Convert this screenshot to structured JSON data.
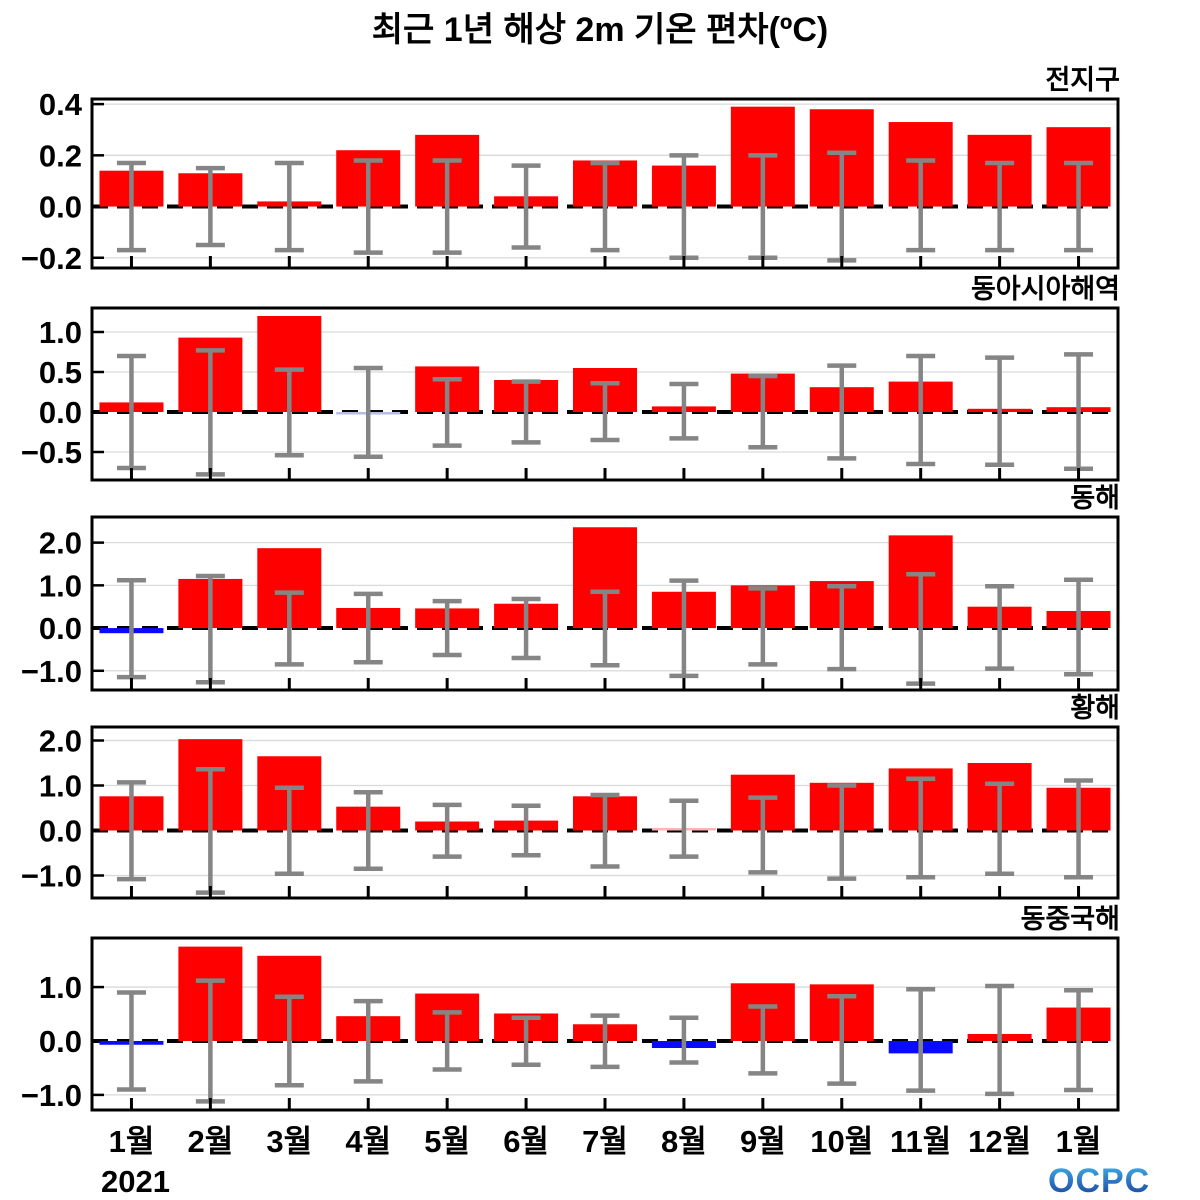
{
  "title": "최근 1년 해상 2m 기온 편차(ºC)",
  "logo_text": "OCPC",
  "x_axis": {
    "months": [
      "1월",
      "2월",
      "3월",
      "4월",
      "5월",
      "6월",
      "7월",
      "8월",
      "9월",
      "10월",
      "11월",
      "12월",
      "1월"
    ],
    "year_label": "2021"
  },
  "colors": {
    "positive_bar": "#ff0000",
    "negative_bar": "#0a0afc",
    "error_bar": "#858585",
    "gridline": "#d9d9d9",
    "zero_line": "#000000",
    "frame": "#000000"
  },
  "chart_data": [
    {
      "type": "bar",
      "region": "전지구",
      "categories": [
        "1월",
        "2월",
        "3월",
        "4월",
        "5월",
        "6월",
        "7월",
        "8월",
        "9월",
        "10월",
        "11월",
        "12월",
        "1월"
      ],
      "values": [
        0.14,
        0.13,
        0.02,
        0.22,
        0.28,
        0.04,
        0.18,
        0.16,
        0.39,
        0.38,
        0.33,
        0.28,
        0.31
      ],
      "spread_top": [
        0.17,
        0.15,
        0.17,
        0.18,
        0.18,
        0.16,
        0.17,
        0.2,
        0.2,
        0.21,
        0.18,
        0.17,
        0.17
      ],
      "spread_bottom": [
        -0.17,
        -0.15,
        -0.17,
        -0.18,
        -0.18,
        -0.16,
        -0.17,
        -0.2,
        -0.2,
        -0.21,
        -0.17,
        -0.17,
        -0.17
      ],
      "yticks": [
        0.4,
        0.2,
        0.0,
        -0.2
      ],
      "ylim": [
        -0.24,
        0.42
      ],
      "bar_color_overrides": {}
    },
    {
      "type": "bar",
      "region": "동아시아해역",
      "categories": [
        "1월",
        "2월",
        "3월",
        "4월",
        "5월",
        "6월",
        "7월",
        "8월",
        "9월",
        "10월",
        "11월",
        "12월",
        "1월"
      ],
      "values": [
        0.12,
        0.93,
        1.2,
        -0.02,
        0.57,
        0.4,
        0.55,
        0.07,
        0.48,
        0.31,
        0.38,
        0.04,
        0.06
      ],
      "spread_top": [
        0.7,
        0.77,
        0.53,
        0.55,
        0.41,
        0.38,
        0.36,
        0.35,
        0.45,
        0.58,
        0.7,
        0.68,
        0.72
      ],
      "spread_bottom": [
        -0.7,
        -0.78,
        -0.54,
        -0.56,
        -0.42,
        -0.38,
        -0.35,
        -0.33,
        -0.44,
        -0.58,
        -0.65,
        -0.66,
        -0.71
      ],
      "yticks": [
        1.0,
        0.5,
        0.0,
        -0.5
      ],
      "ylim": [
        -0.85,
        1.3
      ],
      "bar_color_overrides": {
        "3": "#b7bce4"
      }
    },
    {
      "type": "bar",
      "region": "동해",
      "categories": [
        "1월",
        "2월",
        "3월",
        "4월",
        "5월",
        "6월",
        "7월",
        "8월",
        "9월",
        "10월",
        "11월",
        "12월",
        "1월"
      ],
      "values": [
        -0.12,
        1.15,
        1.87,
        0.47,
        0.46,
        0.57,
        2.36,
        0.85,
        1.0,
        1.1,
        2.17,
        0.5,
        0.4
      ],
      "spread_top": [
        1.12,
        1.22,
        0.83,
        0.8,
        0.63,
        0.68,
        0.85,
        1.11,
        0.93,
        0.98,
        1.26,
        0.98,
        1.13
      ],
      "spread_bottom": [
        -1.15,
        -1.27,
        -0.85,
        -0.8,
        -0.63,
        -0.7,
        -0.87,
        -1.12,
        -0.85,
        -0.96,
        -1.3,
        -0.95,
        -1.08
      ],
      "yticks": [
        2.0,
        1.0,
        0.0,
        -1.0
      ],
      "ylim": [
        -1.45,
        2.6
      ],
      "bar_color_overrides": {}
    },
    {
      "type": "bar",
      "region": "황해",
      "categories": [
        "1월",
        "2월",
        "3월",
        "4월",
        "5월",
        "6월",
        "7월",
        "8월",
        "9월",
        "10월",
        "11월",
        "12월",
        "1월"
      ],
      "values": [
        0.76,
        2.03,
        1.65,
        0.53,
        0.2,
        0.22,
        0.76,
        0.01,
        1.24,
        1.06,
        1.38,
        1.5,
        0.95
      ],
      "spread_top": [
        1.07,
        1.36,
        0.95,
        0.85,
        0.57,
        0.55,
        0.79,
        0.66,
        0.73,
        1.0,
        1.15,
        1.04,
        1.11
      ],
      "spread_bottom": [
        -1.08,
        -1.38,
        -0.96,
        -0.85,
        -0.58,
        -0.55,
        -0.8,
        -0.58,
        -0.93,
        -1.07,
        -1.04,
        -0.96,
        -1.04
      ],
      "yticks": [
        2.0,
        1.0,
        0.0,
        -1.0
      ],
      "ylim": [
        -1.5,
        2.3
      ],
      "bar_color_overrides": {
        "7": "#ffb3b3"
      }
    },
    {
      "type": "bar",
      "region": "동중국해",
      "categories": [
        "1월",
        "2월",
        "3월",
        "4월",
        "5월",
        "6월",
        "7월",
        "8월",
        "9월",
        "10월",
        "11월",
        "12월",
        "1월"
      ],
      "values": [
        -0.07,
        1.75,
        1.58,
        0.46,
        0.88,
        0.51,
        0.31,
        -0.13,
        1.07,
        1.05,
        -0.23,
        0.13,
        0.62
      ],
      "spread_top": [
        0.9,
        1.12,
        0.82,
        0.74,
        0.53,
        0.43,
        0.47,
        0.43,
        0.64,
        0.83,
        0.96,
        1.02,
        0.94
      ],
      "spread_bottom": [
        -0.9,
        -1.12,
        -0.82,
        -0.75,
        -0.53,
        -0.44,
        -0.48,
        -0.4,
        -0.6,
        -0.79,
        -0.92,
        -0.98,
        -0.91
      ],
      "yticks": [
        1.0,
        0.0,
        -1.0
      ],
      "ylim": [
        -1.28,
        1.91
      ],
      "bar_color_overrides": {}
    }
  ]
}
